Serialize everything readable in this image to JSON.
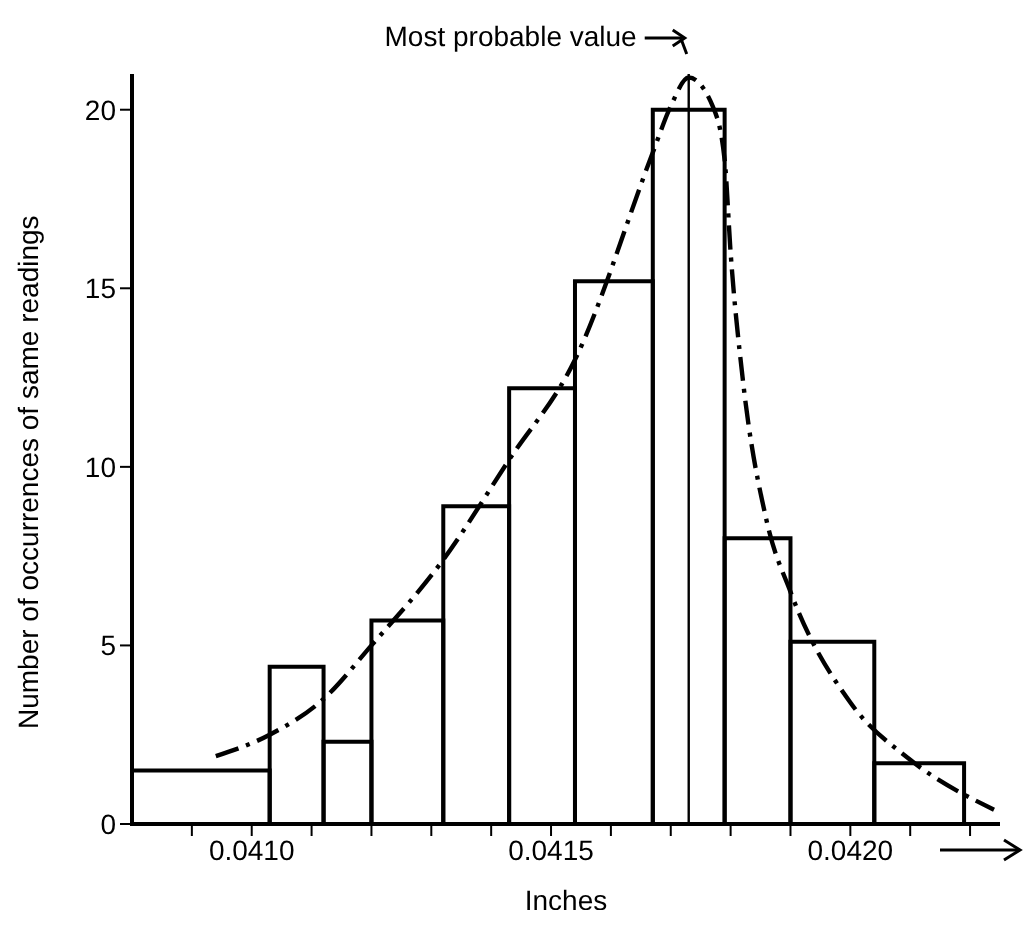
{
  "chart_data": {
    "type": "histogram",
    "xlabel": "Inches",
    "ylabel": "Number of occurrences of same readings",
    "bins": [
      0.0408,
      0.04103,
      0.04112,
      0.0412,
      0.04132,
      0.04143,
      0.04154,
      0.04167,
      0.04179,
      0.0419,
      0.04204,
      0.04219
    ],
    "values": [
      1.5,
      4.4,
      2.3,
      5.7,
      8.9,
      12.2,
      15.2,
      20,
      8,
      5.1,
      1.7
    ],
    "color": "#000000",
    "series": [
      {
        "type": "line",
        "color": "#000000",
        "line_style": "dashed",
        "marker": "none",
        "x": [
          0.04094,
          0.04103,
          0.04112,
          0.0412,
          0.04132,
          0.04143,
          0.04154,
          0.04167,
          0.0417,
          0.04173,
          0.04177,
          0.04179,
          0.0418,
          0.04182,
          0.04186,
          0.0419,
          0.042,
          0.0421,
          0.04224
        ],
        "values": [
          1.9,
          2.5,
          3.5,
          5,
          7.4,
          10.2,
          13,
          18.8,
          20.1,
          20.9,
          20.1,
          18.6,
          16,
          12.5,
          8.5,
          6.5,
          3.4,
          1.8,
          0.4
        ]
      }
    ],
    "ref_lines": [
      {
        "axis": "x",
        "value": 0.04173,
        "label": "Most probable value"
      }
    ],
    "xlim": [
      0.0408,
      0.04225
    ],
    "xticks": [
      {
        "value": 0.0409,
        "label": null
      },
      {
        "value": 0.041,
        "label": "0.0410"
      },
      {
        "value": 0.0411,
        "label": null
      },
      {
        "value": 0.0412,
        "label": null
      },
      {
        "value": 0.0413,
        "label": null
      },
      {
        "value": 0.0414,
        "label": null
      },
      {
        "value": 0.0415,
        "label": "0.0415"
      },
      {
        "value": 0.0416,
        "label": null
      },
      {
        "value": 0.0417,
        "label": null
      },
      {
        "value": 0.0418,
        "label": null
      },
      {
        "value": 0.0419,
        "label": null
      },
      {
        "value": 0.042,
        "label": "0.0420"
      },
      {
        "value": 0.0421,
        "label": null
      },
      {
        "value": 0.0422,
        "label": null
      }
    ],
    "ylim": [
      0,
      21
    ],
    "yticks": [
      0,
      5,
      10,
      15,
      20
    ]
  }
}
